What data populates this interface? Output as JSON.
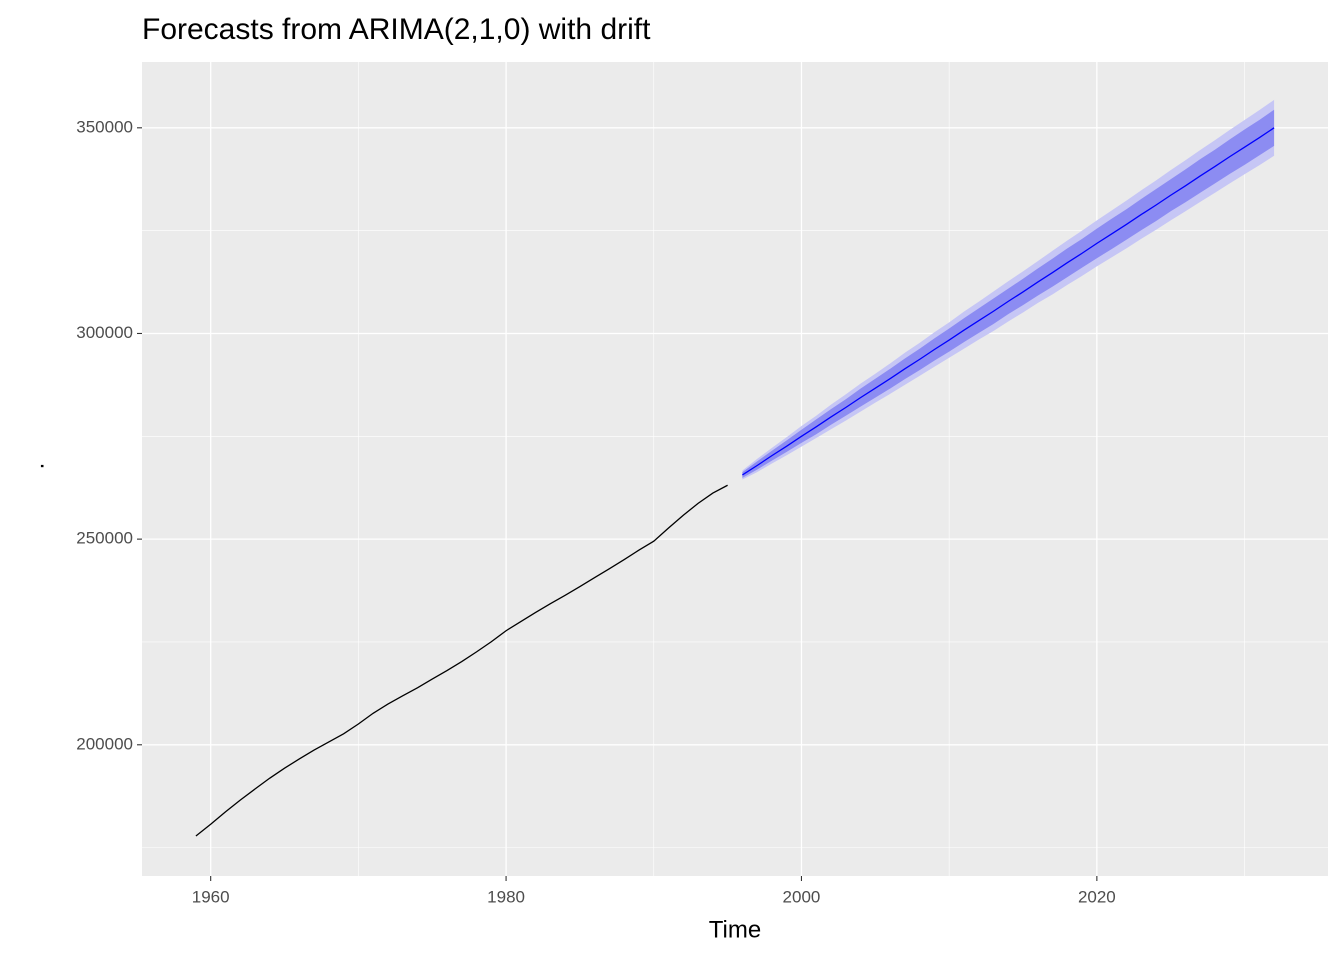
{
  "chart_data": {
    "type": "forecast",
    "title": "Forecasts from ARIMA(2,1,0) with drift",
    "xlabel": "Time",
    "ylabel": ".",
    "xlim": [
      1955.35,
      2035.65
    ],
    "ylim": [
      168100,
      366000
    ],
    "xticks": [
      1960,
      1980,
      2000,
      2020
    ],
    "yticks": [
      200000,
      250000,
      300000,
      350000
    ],
    "x_minor_ticks": [
      1970,
      1990,
      2010,
      2030
    ],
    "y_minor_ticks": [
      175000,
      225000,
      275000,
      325000
    ],
    "grid": true,
    "bands": [
      {
        "color": "#c6c6f5",
        "x": [
          1996,
          1997,
          1998,
          1999,
          2000,
          2001,
          2002,
          2003,
          2004,
          2005,
          2006,
          2007,
          2008,
          2009,
          2010,
          2011,
          2012,
          2013,
          2014,
          2015,
          2016,
          2017,
          2018,
          2019,
          2020,
          2021,
          2022,
          2023,
          2024,
          2025,
          2026,
          2027,
          2028,
          2029,
          2030,
          2031,
          2032
        ],
        "lower": [
          264500,
          266300,
          268400,
          270400,
          272500,
          274600,
          276700,
          278800,
          281000,
          283200,
          285300,
          287500,
          289700,
          291900,
          294100,
          296300,
          298500,
          300600,
          302900,
          305100,
          307400,
          309500,
          311800,
          314000,
          316300,
          318500,
          320700,
          323000,
          325200,
          327500,
          329700,
          332000,
          334200,
          336500,
          338700,
          340900,
          343200
        ],
        "upper": [
          266700,
          269500,
          272200,
          274800,
          277500,
          280000,
          282700,
          285200,
          287800,
          290200,
          292700,
          295300,
          297700,
          300300,
          302700,
          305300,
          307700,
          310200,
          312700,
          315100,
          317600,
          320100,
          322600,
          325000,
          327500,
          329900,
          332300,
          334800,
          337200,
          339700,
          342100,
          344600,
          347000,
          349500,
          351900,
          354300,
          356800
        ]
      },
      {
        "color": "#8c8cf2",
        "x": [
          1996,
          1997,
          1998,
          1999,
          2000,
          2001,
          2002,
          2003,
          2004,
          2005,
          2006,
          2007,
          2008,
          2009,
          2010,
          2011,
          2012,
          2013,
          2014,
          2015,
          2016,
          2017,
          2018,
          2019,
          2020,
          2021,
          2022,
          2023,
          2024,
          2025,
          2026,
          2027,
          2028,
          2029,
          2030,
          2031,
          2032
        ],
        "lower": [
          264900,
          266900,
          269100,
          271200,
          273400,
          275500,
          277800,
          280000,
          282200,
          284400,
          286600,
          288900,
          291100,
          293400,
          295600,
          297900,
          300100,
          302300,
          304700,
          306900,
          309200,
          311400,
          313700,
          316000,
          318300,
          320500,
          322800,
          325100,
          327300,
          329700,
          331900,
          334200,
          336500,
          338800,
          341000,
          343300,
          345600
        ],
        "upper": [
          266300,
          268900,
          271500,
          274000,
          276600,
          279100,
          281600,
          284000,
          286600,
          289000,
          291400,
          293900,
          296300,
          298800,
          301200,
          303700,
          306100,
          308500,
          310900,
          313300,
          315800,
          318200,
          320700,
          323000,
          325500,
          327900,
          330200,
          332700,
          335100,
          337500,
          339900,
          342400,
          344700,
          347200,
          349600,
          351900,
          354400
        ]
      }
    ],
    "series": [
      {
        "color": "#000000",
        "x": [
          1959,
          1960,
          1961,
          1962,
          1963,
          1964,
          1965,
          1966,
          1967,
          1968,
          1969,
          1970,
          1971,
          1972,
          1973,
          1974,
          1975,
          1976,
          1977,
          1978,
          1979,
          1980,
          1981,
          1982,
          1983,
          1984,
          1985,
          1986,
          1987,
          1988,
          1989,
          1990,
          1991,
          1992,
          1993,
          1994,
          1995
        ],
        "values": [
          177830,
          180671,
          183691,
          186538,
          189242,
          191889,
          194303,
          196560,
          198712,
          200706,
          202677,
          205052,
          207661,
          209896,
          211909,
          213854,
          215973,
          218035,
          220239,
          222585,
          225055,
          227726,
          229966,
          232188,
          234307,
          236348,
          238466,
          240651,
          242804,
          245021,
          247342,
          249500,
          252700,
          255800,
          258700,
          261200,
          263100
        ]
      },
      {
        "color": "#0000ff",
        "x": [
          1996,
          1997,
          1998,
          1999,
          2000,
          2001,
          2002,
          2003,
          2004,
          2005,
          2006,
          2007,
          2008,
          2009,
          2010,
          2011,
          2012,
          2013,
          2014,
          2015,
          2016,
          2017,
          2018,
          2019,
          2020,
          2021,
          2022,
          2023,
          2024,
          2025,
          2026,
          2027,
          2028,
          2029,
          2030,
          2031,
          2032
        ],
        "values": [
          265600,
          267900,
          270300,
          272600,
          275000,
          277300,
          279700,
          282000,
          284400,
          286700,
          289000,
          291400,
          293700,
          296100,
          298400,
          300800,
          303100,
          305400,
          307800,
          310100,
          312500,
          314800,
          317200,
          319500,
          321900,
          324200,
          326500,
          328900,
          331200,
          333600,
          335900,
          338300,
          340600,
          343000,
          345300,
          347600,
          350000
        ]
      }
    ]
  }
}
